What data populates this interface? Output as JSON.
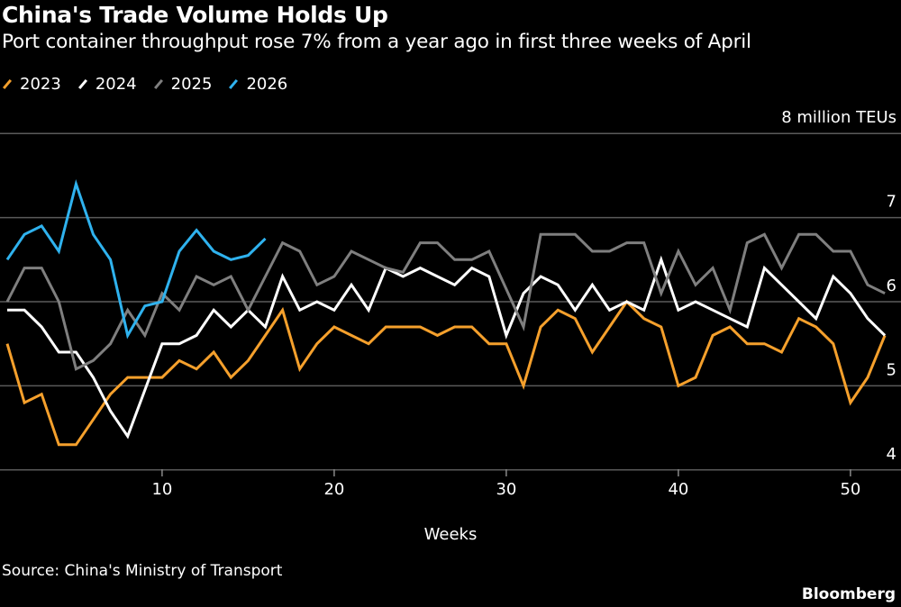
{
  "chart_data": {
    "type": "line",
    "title": "China's Trade Volume Holds Up",
    "subtitle": "Port container throughput rose 7% from a year ago in first three weeks of April",
    "xlabel": "Weeks",
    "ylabel": "8 million TEUs",
    "xlim": [
      1,
      52
    ],
    "ylim": [
      4,
      8
    ],
    "x_ticks": [
      10,
      20,
      30,
      40,
      50
    ],
    "y_ticks": [
      {
        "value": 8,
        "label": "8 million TEUs"
      },
      {
        "value": 7,
        "label": "7"
      },
      {
        "value": 6,
        "label": "6"
      },
      {
        "value": 5,
        "label": "5"
      },
      {
        "value": 4,
        "label": "4"
      }
    ],
    "grid": true,
    "legend_placement": "top-left",
    "series": [
      {
        "name": "2023",
        "color": "#f5a02c",
        "values": [
          5.5,
          4.8,
          4.9,
          4.3,
          4.3,
          4.6,
          4.9,
          5.1,
          5.1,
          5.1,
          5.3,
          5.2,
          5.4,
          5.1,
          5.3,
          5.6,
          5.9,
          5.2,
          5.5,
          5.7,
          5.6,
          5.5,
          5.7,
          5.7,
          5.7,
          5.6,
          5.7,
          5.7,
          5.5,
          5.5,
          5.0,
          5.7,
          5.9,
          5.8,
          5.4,
          5.7,
          6.0,
          5.8,
          5.7,
          5.0,
          5.1,
          5.6,
          5.7,
          5.5,
          5.5,
          5.4,
          5.8,
          5.7,
          5.5,
          4.8,
          5.1,
          5.6
        ]
      },
      {
        "name": "2024",
        "color": "#ffffff",
        "values": [
          5.9,
          5.9,
          5.7,
          5.4,
          5.4,
          5.1,
          4.7,
          4.4,
          4.95,
          5.5,
          5.5,
          5.6,
          5.9,
          5.7,
          5.9,
          5.7,
          6.3,
          5.9,
          6.0,
          5.9,
          6.2,
          5.9,
          6.4,
          6.3,
          6.4,
          6.3,
          6.2,
          6.4,
          6.3,
          5.6,
          6.1,
          6.3,
          6.2,
          5.9,
          6.2,
          5.9,
          6.0,
          5.9,
          6.5,
          5.9,
          6.0,
          5.9,
          5.8,
          5.7,
          6.4,
          6.2,
          6.0,
          5.8,
          6.3,
          6.1,
          5.8,
          5.6
        ]
      },
      {
        "name": "2025",
        "color": "#7f7f7f",
        "values": [
          6.0,
          6.4,
          6.4,
          6.0,
          5.2,
          5.3,
          5.5,
          5.9,
          5.6,
          6.1,
          5.9,
          6.3,
          6.2,
          6.3,
          5.9,
          6.3,
          6.7,
          6.6,
          6.2,
          6.3,
          6.6,
          6.5,
          6.4,
          6.35,
          6.7,
          6.7,
          6.5,
          6.5,
          6.6,
          6.15,
          5.7,
          6.8,
          6.8,
          6.8,
          6.6,
          6.6,
          6.7,
          6.7,
          6.1,
          6.6,
          6.2,
          6.4,
          5.9,
          6.7,
          6.8,
          6.4,
          6.8,
          6.8,
          6.6,
          6.6,
          6.2,
          6.1
        ]
      },
      {
        "name": "2026",
        "color": "#2fb2ee",
        "values": [
          6.5,
          6.8,
          6.9,
          6.6,
          7.4,
          6.8,
          6.5,
          5.6,
          5.95,
          6.0,
          6.6,
          6.85,
          6.6,
          6.5,
          6.55,
          6.75
        ]
      }
    ]
  },
  "source": "Source: China's Ministry of Transport",
  "brand": "Bloomberg"
}
